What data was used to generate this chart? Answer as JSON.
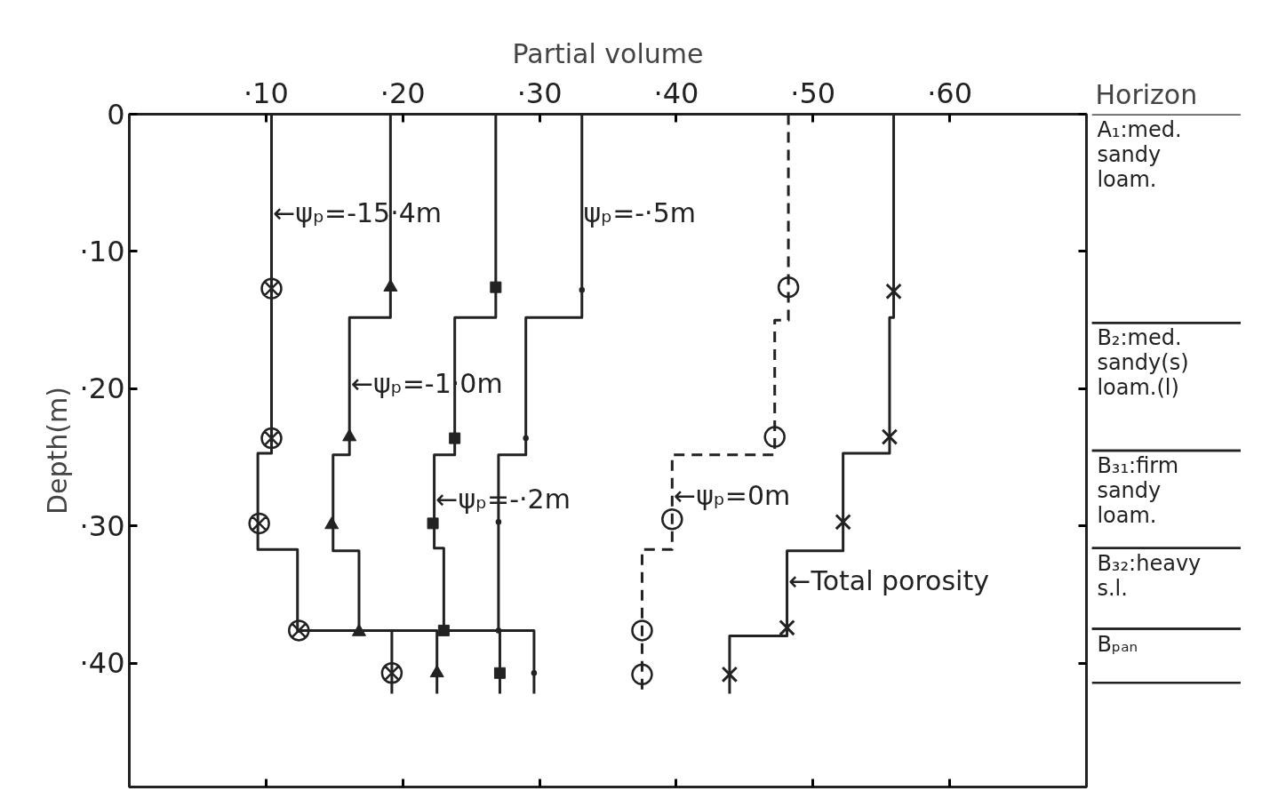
{
  "chart_data": [
    {
      "type": "line",
      "xlabel": "Partial volume",
      "ylabel": "Depth(m)",
      "xlim": [
        0,
        70
      ],
      "ylim": [
        49,
        0
      ],
      "xticks": [
        {
          "value": 10,
          "label": "·10"
        },
        {
          "value": 20,
          "label": "·20"
        },
        {
          "value": 30,
          "label": "·30"
        },
        {
          "value": 40,
          "label": "·40"
        },
        {
          "value": 50,
          "label": "·50"
        },
        {
          "value": 60,
          "label": "·60"
        }
      ],
      "yticks": [
        0,
        {
          "value": 10,
          "label": "·10"
        },
        {
          "value": 20,
          "label": "·20"
        },
        {
          "value": 30,
          "label": "·30"
        },
        {
          "value": 40,
          "label": "·40"
        }
      ],
      "series": [
        {
          "color": "#222222",
          "line_style": "solid",
          "x": [
            10.4,
            10.4,
            9.4,
            9.4,
            12.3,
            12.3,
            19.2,
            19.2
          ],
          "values": [
            0,
            24.7,
            24.7,
            31.7,
            31.7,
            37.6,
            37.6,
            42.2
          ]
        },
        {
          "type": "scatter",
          "color": "#222222",
          "marker": "circle_x",
          "x": [
            10.4,
            10.4,
            9.5,
            12.4,
            19.2
          ],
          "values": [
            12.7,
            23.6,
            29.8,
            37.6,
            40.7
          ]
        },
        {
          "color": "#222222",
          "line_style": "solid",
          "x": [
            19.1,
            19.1,
            16.1,
            16.1,
            14.9,
            14.9,
            16.8,
            16.8,
            22.5,
            22.5
          ],
          "values": [
            0,
            14.8,
            14.8,
            24.8,
            24.8,
            31.8,
            31.8,
            37.6,
            37.6,
            42.2
          ]
        },
        {
          "type": "scatter",
          "color": "#222222",
          "marker": "triangle",
          "x": [
            19.1,
            16.1,
            14.8,
            16.8,
            22.5
          ],
          "values": [
            12.6,
            23.5,
            29.9,
            37.7,
            40.7
          ]
        },
        {
          "color": "#222222",
          "line_style": "solid",
          "x": [
            26.8,
            26.8,
            23.8,
            23.8,
            22.3,
            22.3,
            23.0,
            23.0,
            27.1,
            27.1
          ],
          "values": [
            0,
            14.8,
            14.8,
            24.8,
            24.8,
            31.6,
            31.6,
            37.6,
            37.6,
            42.2
          ]
        },
        {
          "type": "scatter",
          "color": "#222222",
          "marker": "square",
          "x": [
            26.8,
            23.8,
            22.2,
            23.0,
            27.1
          ],
          "values": [
            12.6,
            23.6,
            29.8,
            37.6,
            40.7
          ]
        },
        {
          "color": "#222222",
          "line_style": "solid",
          "x": [
            33.1,
            33.1,
            29.0,
            29.0,
            27.0,
            27.0,
            29.6,
            29.6
          ],
          "values": [
            0,
            14.8,
            14.8,
            24.8,
            24.8,
            37.6,
            37.6,
            42.2
          ]
        },
        {
          "type": "scatter",
          "color": "#222222",
          "marker": "dot",
          "x": [
            33.1,
            29.0,
            27.0,
            27.0,
            29.6
          ],
          "values": [
            12.8,
            23.6,
            29.7,
            37.6,
            40.7
          ]
        },
        {
          "color": "#222222",
          "line_style": "dashed",
          "x": [
            48.2,
            48.2,
            47.2,
            47.2,
            39.7,
            39.7,
            37.5,
            37.5
          ],
          "values": [
            0,
            15.0,
            15.0,
            24.8,
            24.8,
            31.7,
            31.7,
            42.2
          ]
        },
        {
          "type": "scatter",
          "color": "#222222",
          "marker": "circle",
          "x": [
            48.2,
            47.2,
            39.7,
            37.5,
            37.5
          ],
          "values": [
            12.6,
            23.5,
            29.5,
            37.6,
            40.8
          ]
        },
        {
          "color": "#222222",
          "line_style": "solid",
          "x": [
            55.9,
            55.9,
            55.6,
            55.6,
            52.2,
            52.2,
            48.1,
            48.1,
            43.9,
            43.9
          ],
          "values": [
            0,
            14.8,
            14.8,
            24.7,
            24.7,
            31.8,
            31.8,
            38.0,
            38.0,
            42.2
          ]
        },
        {
          "type": "scatter",
          "color": "#222222",
          "marker": "x",
          "x": [
            55.9,
            55.6,
            52.2,
            48.1,
            43.9
          ],
          "values": [
            12.9,
            23.5,
            29.7,
            37.4,
            40.8
          ]
        }
      ],
      "annotations": [
        {
          "text": "←ψₚ=-15·4m",
          "x": 10.4,
          "y": 7.2
        },
        {
          "text": "←ψₚ=-1·0m",
          "x": 16.1,
          "y": 19.6
        },
        {
          "text": "←ψₚ=-·2m",
          "x": 22.3,
          "y": 28.0
        },
        {
          "text": "ψₚ=-·5m",
          "x": 33.1,
          "y": 7.2
        },
        {
          "text": "←ψₚ=0m",
          "x": 39.7,
          "y": 27.8
        },
        {
          "text": "←Total porosity",
          "x": 48.1,
          "y": 34.0
        }
      ]
    },
    {
      "type": "other",
      "title": "Horizon",
      "annotations": [
        "A₁:med. sandy loam.",
        "B₂:med. sandy(s) loam.(l)",
        "B₃₁:firm sandy loam.",
        "B₃₂:heavy s.l.",
        "Bₚₐₙ"
      ]
    }
  ]
}
